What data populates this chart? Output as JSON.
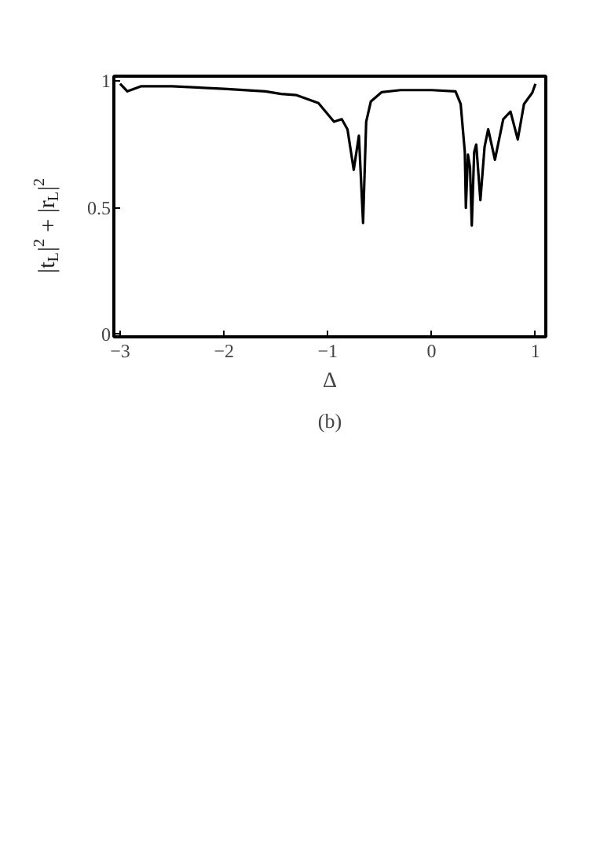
{
  "chart_data": {
    "type": "line",
    "xlabel": "Δ",
    "ylabel": "|t$_{L}$|$^{2}$ + |r$_{L}$|$^{2}$",
    "annotations": [
      "(b)"
    ],
    "xlim": [
      -3.06,
      1.1
    ],
    "ylim": [
      -0.01,
      1.02
    ],
    "xticks": [
      -3,
      -2,
      -1,
      0,
      1
    ],
    "yticks": [
      0,
      0.5,
      1
    ],
    "grid": false,
    "series": [
      {
        "color": "#000000",
        "x": [
          -3.0,
          -2.93,
          -2.8,
          -2.5,
          -2.0,
          -1.6,
          -1.45,
          -1.3,
          -1.2,
          -1.09,
          -0.94,
          -0.865,
          -0.81,
          -0.75,
          -0.7,
          -0.66,
          -0.63,
          -0.585,
          -0.48,
          -0.3,
          0.0,
          0.23,
          0.28,
          0.32,
          0.33,
          0.35,
          0.37,
          0.387,
          0.41,
          0.43,
          0.47,
          0.51,
          0.545,
          0.61,
          0.69,
          0.76,
          0.83,
          0.89,
          0.97,
          1.0
        ],
        "values": [
          0.99,
          0.96,
          0.98,
          0.98,
          0.97,
          0.96,
          0.95,
          0.945,
          0.93,
          0.914,
          0.84,
          0.85,
          0.81,
          0.65,
          0.785,
          0.44,
          0.84,
          0.92,
          0.957,
          0.965,
          0.965,
          0.96,
          0.91,
          0.72,
          0.5,
          0.71,
          0.66,
          0.43,
          0.72,
          0.75,
          0.53,
          0.74,
          0.81,
          0.69,
          0.85,
          0.88,
          0.77,
          0.91,
          0.955,
          0.99
        ]
      }
    ]
  }
}
